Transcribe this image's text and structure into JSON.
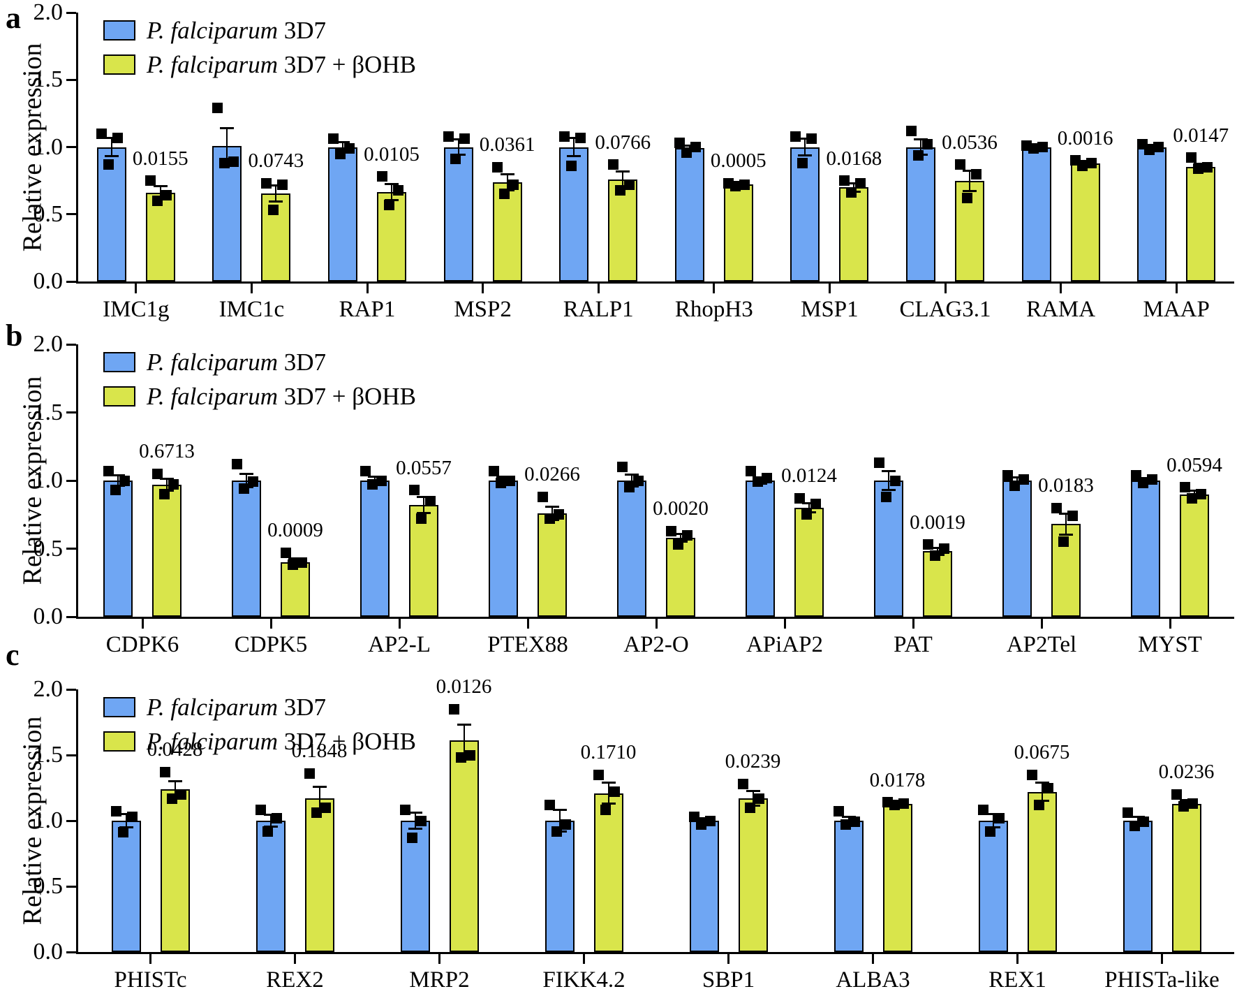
{
  "figure": {
    "ylabel": "Relative expression",
    "colors": {
      "blue": "#6FA6F3",
      "yellow": "#D9E54B",
      "marker": "#000000",
      "axis": "#000000"
    },
    "legend": [
      {
        "swatch": "blue",
        "italic": "P. falciparum",
        "rest": "3D7"
      },
      {
        "swatch": "yellow",
        "italic": "P. falciparum",
        "rest": "3D7 + βOHB"
      }
    ],
    "series_names": [
      "P. falciparum 3D7",
      "P. falciparum 3D7 + βOHB"
    ]
  },
  "chart_data": [
    {
      "panel": "a",
      "type": "bar",
      "ylabel": "Relative expression",
      "ylim": [
        0,
        2.0
      ],
      "yticks": [
        "0.0",
        "0.5",
        "1.0",
        "1.5",
        "2.0"
      ],
      "legend_position": "top-left",
      "grid": false,
      "categories": [
        "IMC1g",
        "IMC1c",
        "RAP1",
        "MSP2",
        "RALP1",
        "RhopH3",
        "MSP1",
        "CLAG3.1",
        "RAMA",
        "MAAP"
      ],
      "groups": [
        {
          "name": "IMC1g",
          "p": "0.0155",
          "blue": {
            "mean": 1.0,
            "err": 0.07,
            "points": [
              1.1,
              1.07,
              0.87
            ]
          },
          "yellow": {
            "mean": 0.66,
            "err": 0.05,
            "points": [
              0.75,
              0.64,
              0.6
            ]
          }
        },
        {
          "name": "IMC1c",
          "p": "0.0743",
          "blue": {
            "mean": 1.01,
            "err": 0.13,
            "points": [
              1.29,
              0.89,
              0.88
            ]
          },
          "yellow": {
            "mean": 0.655,
            "err": 0.06,
            "points": [
              0.73,
              0.72,
              0.53
            ]
          }
        },
        {
          "name": "RAP1",
          "p": "0.0105",
          "blue": {
            "mean": 1.0,
            "err": 0.035,
            "points": [
              1.06,
              0.99,
              0.95
            ]
          },
          "yellow": {
            "mean": 0.665,
            "err": 0.06,
            "points": [
              0.78,
              0.68,
              0.57
            ]
          }
        },
        {
          "name": "MSP2",
          "p": "0.0361",
          "blue": {
            "mean": 1.0,
            "err": 0.055,
            "points": [
              1.08,
              1.06,
              0.91
            ]
          },
          "yellow": {
            "mean": 0.74,
            "err": 0.06,
            "points": [
              0.85,
              0.72,
              0.65
            ]
          }
        },
        {
          "name": "RALP1",
          "p": "0.0766",
          "blue": {
            "mean": 1.0,
            "err": 0.07,
            "points": [
              1.08,
              1.07,
              0.86
            ]
          },
          "yellow": {
            "mean": 0.76,
            "err": 0.06,
            "points": [
              0.87,
              0.72,
              0.68
            ]
          }
        },
        {
          "name": "RhopH3",
          "p": "0.0005",
          "blue": {
            "mean": 0.99,
            "err": 0.02,
            "points": [
              1.03,
              1.0,
              0.96
            ]
          },
          "yellow": {
            "mean": 0.72,
            "err": 0.01,
            "points": [
              0.73,
              0.72,
              0.71
            ]
          }
        },
        {
          "name": "MSP1",
          "p": "0.0168",
          "blue": {
            "mean": 1.0,
            "err": 0.06,
            "points": [
              1.08,
              1.06,
              0.88
            ]
          },
          "yellow": {
            "mean": 0.7,
            "err": 0.03,
            "points": [
              0.75,
              0.73,
              0.66
            ]
          }
        },
        {
          "name": "CLAG3.1",
          "p": "0.0536",
          "blue": {
            "mean": 1.0,
            "err": 0.055,
            "points": [
              1.12,
              1.02,
              0.94
            ]
          },
          "yellow": {
            "mean": 0.75,
            "err": 0.075,
            "points": [
              0.87,
              0.8,
              0.62
            ]
          }
        },
        {
          "name": "RAMA",
          "p": "0.0016",
          "blue": {
            "mean": 1.0,
            "err": 0.01,
            "points": [
              1.01,
              1.0,
              0.99
            ]
          },
          "yellow": {
            "mean": 0.88,
            "err": 0.015,
            "points": [
              0.9,
              0.88,
              0.86
            ]
          }
        },
        {
          "name": "MAAP",
          "p": "0.0147",
          "blue": {
            "mean": 1.0,
            "err": 0.015,
            "points": [
              1.02,
              1.0,
              0.98
            ]
          },
          "yellow": {
            "mean": 0.85,
            "err": 0.025,
            "points": [
              0.92,
              0.85,
              0.84
            ]
          }
        }
      ]
    },
    {
      "panel": "b",
      "type": "bar",
      "ylabel": "Relative expression",
      "ylim": [
        0,
        2.0
      ],
      "yticks": [
        "0.0",
        "0.5",
        "1.0",
        "1.5",
        "2.0"
      ],
      "legend_position": "top-left",
      "grid": false,
      "categories": [
        "CDPK6",
        "CDPK5",
        "AP2-L",
        "PTEX88",
        "AP2-O",
        "APiAP2",
        "PAT",
        "AP2Tel",
        "MYST"
      ],
      "groups": [
        {
          "name": "CDPK6",
          "p": "0.6713",
          "blue": {
            "mean": 1.0,
            "err": 0.04,
            "points": [
              1.07,
              1.0,
              0.93
            ]
          },
          "yellow": {
            "mean": 0.97,
            "err": 0.045,
            "points": [
              1.05,
              0.97,
              0.9
            ]
          }
        },
        {
          "name": "CDPK5",
          "p": "0.0009",
          "blue": {
            "mean": 1.0,
            "err": 0.05,
            "points": [
              1.12,
              0.99,
              0.94
            ]
          },
          "yellow": {
            "mean": 0.4,
            "err": 0.03,
            "points": [
              0.47,
              0.4,
              0.38
            ]
          }
        },
        {
          "name": "AP2-L",
          "p": "0.0557",
          "blue": {
            "mean": 1.0,
            "err": 0.03,
            "points": [
              1.07,
              1.0,
              0.97
            ]
          },
          "yellow": {
            "mean": 0.82,
            "err": 0.06,
            "points": [
              0.93,
              0.85,
              0.72
            ]
          }
        },
        {
          "name": "PTEX88",
          "p": "0.0266",
          "blue": {
            "mean": 1.0,
            "err": 0.03,
            "points": [
              1.07,
              1.0,
              0.98
            ]
          },
          "yellow": {
            "mean": 0.76,
            "err": 0.05,
            "points": [
              0.88,
              0.75,
              0.72
            ]
          }
        },
        {
          "name": "AP2-O",
          "p": "0.0020",
          "blue": {
            "mean": 1.0,
            "err": 0.045,
            "points": [
              1.1,
              1.0,
              0.95
            ]
          },
          "yellow": {
            "mean": 0.58,
            "err": 0.03,
            "points": [
              0.63,
              0.6,
              0.53
            ]
          }
        },
        {
          "name": "APiAP2",
          "p": "0.0124",
          "blue": {
            "mean": 1.0,
            "err": 0.025,
            "points": [
              1.07,
              1.02,
              0.99
            ]
          },
          "yellow": {
            "mean": 0.8,
            "err": 0.035,
            "points": [
              0.87,
              0.83,
              0.75
            ]
          }
        },
        {
          "name": "PAT",
          "p": "0.0019",
          "blue": {
            "mean": 1.0,
            "err": 0.07,
            "points": [
              1.13,
              1.0,
              0.88
            ]
          },
          "yellow": {
            "mean": 0.48,
            "err": 0.025,
            "points": [
              0.53,
              0.5,
              0.45
            ]
          }
        },
        {
          "name": "AP2Tel",
          "p": "0.0183",
          "blue": {
            "mean": 1.0,
            "err": 0.025,
            "points": [
              1.04,
              1.01,
              0.96
            ]
          },
          "yellow": {
            "mean": 0.68,
            "err": 0.075,
            "points": [
              0.8,
              0.74,
              0.55
            ]
          }
        },
        {
          "name": "MYST",
          "p": "0.0594",
          "blue": {
            "mean": 1.0,
            "err": 0.02,
            "points": [
              1.04,
              1.01,
              0.98
            ]
          },
          "yellow": {
            "mean": 0.9,
            "err": 0.025,
            "points": [
              0.95,
              0.9,
              0.87
            ]
          }
        }
      ]
    },
    {
      "panel": "c",
      "type": "bar",
      "ylabel": "Relative expression",
      "ylim": [
        0,
        2.0
      ],
      "yticks": [
        "0.0",
        "0.5",
        "1.0",
        "1.5",
        "2.0"
      ],
      "legend_position": "top-left",
      "grid": false,
      "categories": [
        "PHISTc",
        "REX2",
        "MRP2",
        "FIKK4.2",
        "SBP1",
        "ALBA3",
        "REX1",
        "PHISTa-like"
      ],
      "groups": [
        {
          "name": "PHISTc",
          "p": "0.0428",
          "blue": {
            "mean": 1.0,
            "err": 0.05,
            "points": [
              1.07,
              1.03,
              0.91
            ]
          },
          "yellow": {
            "mean": 1.24,
            "err": 0.06,
            "points": [
              1.37,
              1.2,
              1.17
            ]
          }
        },
        {
          "name": "REX2",
          "p": "0.1848",
          "blue": {
            "mean": 1.0,
            "err": 0.045,
            "points": [
              1.08,
              1.02,
              0.92
            ]
          },
          "yellow": {
            "mean": 1.17,
            "err": 0.09,
            "points": [
              1.36,
              1.1,
              1.06
            ]
          }
        },
        {
          "name": "MRP2",
          "p": "0.0126",
          "blue": {
            "mean": 1.0,
            "err": 0.06,
            "points": [
              1.08,
              1.0,
              0.87
            ]
          },
          "yellow": {
            "mean": 1.61,
            "err": 0.12,
            "points": [
              1.85,
              1.5,
              1.48
            ]
          }
        },
        {
          "name": "FIKK4.2",
          "p": "0.1710",
          "blue": {
            "mean": 1.0,
            "err": 0.08,
            "points": [
              1.12,
              0.97,
              0.92
            ]
          },
          "yellow": {
            "mean": 1.21,
            "err": 0.08,
            "points": [
              1.35,
              1.22,
              1.08
            ]
          }
        },
        {
          "name": "SBP1",
          "p": "0.0239",
          "blue": {
            "mean": 1.0,
            "err": 0.02,
            "points": [
              1.03,
              1.0,
              0.97
            ]
          },
          "yellow": {
            "mean": 1.17,
            "err": 0.055,
            "points": [
              1.28,
              1.17,
              1.1
            ]
          }
        },
        {
          "name": "ALBA3",
          "p": "0.0178",
          "blue": {
            "mean": 1.0,
            "err": 0.03,
            "points": [
              1.07,
              0.99,
              0.97
            ]
          },
          "yellow": {
            "mean": 1.13,
            "err": 0.01,
            "points": [
              1.14,
              1.13,
              1.12
            ]
          }
        },
        {
          "name": "REX1",
          "p": "0.0675",
          "blue": {
            "mean": 1.0,
            "err": 0.05,
            "points": [
              1.08,
              1.02,
              0.92
            ]
          },
          "yellow": {
            "mean": 1.22,
            "err": 0.07,
            "points": [
              1.35,
              1.25,
              1.12
            ]
          }
        },
        {
          "name": "PHISTa-like",
          "p": "0.0236",
          "blue": {
            "mean": 1.0,
            "err": 0.03,
            "points": [
              1.06,
              0.99,
              0.96
            ]
          },
          "yellow": {
            "mean": 1.13,
            "err": 0.025,
            "points": [
              1.2,
              1.13,
              1.11
            ]
          }
        }
      ]
    }
  ]
}
